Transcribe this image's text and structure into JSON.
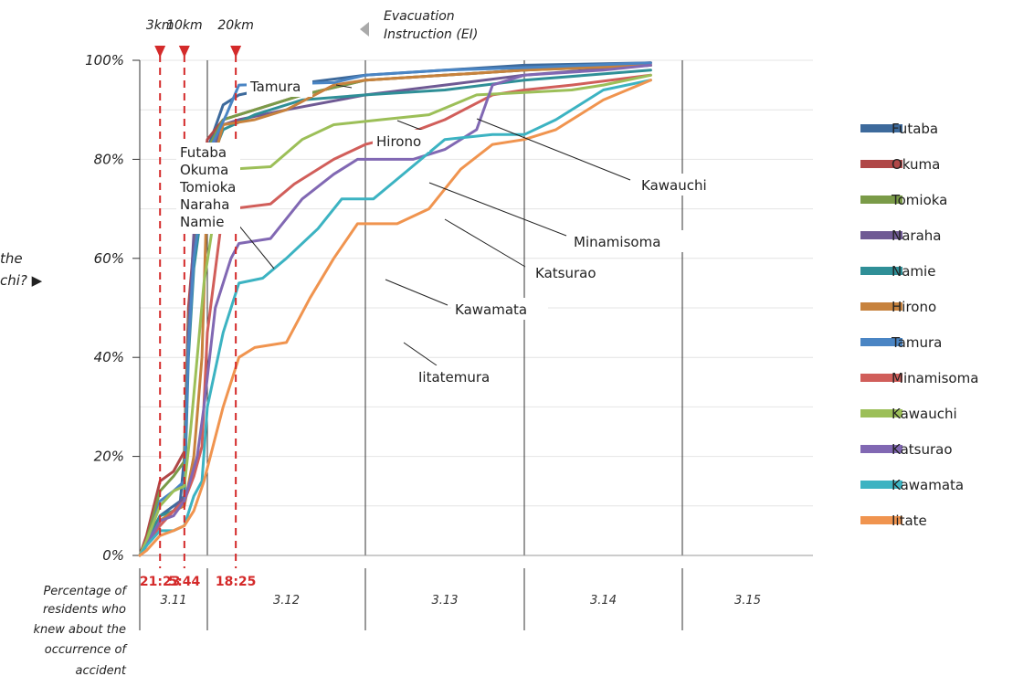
{
  "chart_data": {
    "type": "line",
    "y_ticks": [
      "0%",
      "20%",
      "40%",
      "60%",
      "80%",
      "100%"
    ],
    "ylim": [
      0,
      100
    ],
    "x_day_labels": [
      "3.11",
      "3.12",
      "3.13",
      "3.14",
      "3.15"
    ],
    "ylabel_lines": [
      "Percentage of",
      "residents who",
      "knew about the",
      "occurrence of",
      "accident"
    ],
    "side_text": [
      "the",
      "chi? ▶"
    ],
    "evacuation": {
      "label_lines": [
        "Evacuation",
        "Instruction (EI)"
      ],
      "markers": [
        {
          "distance": "3km",
          "time": "21:23",
          "x": 0.3
        },
        {
          "distance": "10km",
          "time": "5:44",
          "x": 0.66
        },
        {
          "distance": "20km",
          "time": "18:25",
          "x": 1.18
        }
      ]
    },
    "callouts": [
      "Tamura",
      "Hirono",
      "Kawauchi",
      "Minamisoma",
      "Katsurao",
      "Kawamata",
      "Iitatemura"
    ],
    "group_callout": [
      "Futaba",
      "Okuma",
      "Tomioka",
      "Naraha",
      "Namie"
    ],
    "series": [
      {
        "name": "Futaba",
        "color": "#3d6a9c",
        "points": [
          [
            0,
            0
          ],
          [
            0.1,
            3
          ],
          [
            0.3,
            8
          ],
          [
            0.5,
            10
          ],
          [
            0.6,
            11
          ],
          [
            0.66,
            20
          ],
          [
            0.72,
            48
          ],
          [
            0.8,
            62
          ],
          [
            0.9,
            71
          ],
          [
            1.0,
            82
          ],
          [
            1.1,
            91
          ],
          [
            1.2,
            93
          ],
          [
            1.5,
            95
          ],
          [
            2.0,
            97
          ],
          [
            2.5,
            98
          ],
          [
            3.0,
            99
          ],
          [
            3.8,
            99.5
          ]
        ]
      },
      {
        "name": "Okuma",
        "color": "#b04747",
        "points": [
          [
            0,
            0
          ],
          [
            0.1,
            4
          ],
          [
            0.3,
            15
          ],
          [
            0.5,
            17
          ],
          [
            0.66,
            21
          ],
          [
            0.72,
            50
          ],
          [
            0.8,
            63
          ],
          [
            0.9,
            73
          ],
          [
            1.0,
            84
          ],
          [
            1.1,
            88
          ],
          [
            1.3,
            90
          ],
          [
            1.6,
            93
          ],
          [
            2.0,
            96
          ],
          [
            2.5,
            97
          ],
          [
            3.0,
            98
          ],
          [
            3.8,
            99.5
          ]
        ]
      },
      {
        "name": "Tomioka",
        "color": "#7a9b48",
        "points": [
          [
            0,
            0
          ],
          [
            0.1,
            3
          ],
          [
            0.3,
            13
          ],
          [
            0.5,
            16
          ],
          [
            0.66,
            19
          ],
          [
            0.72,
            47
          ],
          [
            0.8,
            61
          ],
          [
            0.9,
            70
          ],
          [
            1.0,
            82
          ],
          [
            1.1,
            88
          ],
          [
            1.3,
            90
          ],
          [
            1.6,
            93
          ],
          [
            2.0,
            96
          ],
          [
            2.5,
            97
          ],
          [
            3.0,
            98
          ],
          [
            3.8,
            99
          ]
        ]
      },
      {
        "name": "Naraha",
        "color": "#6f5a94",
        "points": [
          [
            0,
            0
          ],
          [
            0.1,
            2
          ],
          [
            0.3,
            7
          ],
          [
            0.5,
            9
          ],
          [
            0.66,
            12
          ],
          [
            0.72,
            45
          ],
          [
            0.8,
            65
          ],
          [
            0.9,
            69
          ],
          [
            1.0,
            79
          ],
          [
            1.1,
            87
          ],
          [
            1.2,
            88
          ],
          [
            1.5,
            90
          ],
          [
            2.0,
            93
          ],
          [
            2.5,
            95
          ],
          [
            3.0,
            97
          ],
          [
            3.8,
            99
          ]
        ]
      },
      {
        "name": "Namie",
        "color": "#2f8f97",
        "points": [
          [
            0,
            0
          ],
          [
            0.1,
            2
          ],
          [
            0.3,
            8
          ],
          [
            0.5,
            9
          ],
          [
            0.66,
            11
          ],
          [
            0.72,
            40
          ],
          [
            0.8,
            58
          ],
          [
            0.9,
            68
          ],
          [
            1.0,
            78
          ],
          [
            1.1,
            86
          ],
          [
            1.3,
            89
          ],
          [
            1.6,
            92
          ],
          [
            2.0,
            93
          ],
          [
            2.5,
            94
          ],
          [
            3.0,
            96
          ],
          [
            3.8,
            98
          ]
        ]
      },
      {
        "name": "Hirono",
        "color": "#c7823d",
        "points": [
          [
            0,
            0
          ],
          [
            0.1,
            2
          ],
          [
            0.3,
            7
          ],
          [
            0.5,
            9
          ],
          [
            0.66,
            10
          ],
          [
            0.8,
            20
          ],
          [
            0.92,
            40
          ],
          [
            1.0,
            75
          ],
          [
            1.1,
            87
          ],
          [
            1.3,
            88
          ],
          [
            1.5,
            90
          ],
          [
            1.8,
            95
          ],
          [
            2.0,
            96
          ],
          [
            2.5,
            97
          ],
          [
            3.0,
            98
          ],
          [
            3.8,
            99
          ]
        ]
      },
      {
        "name": "Tamura",
        "color": "#4a85c4",
        "points": [
          [
            0,
            0
          ],
          [
            0.1,
            2
          ],
          [
            0.3,
            11
          ],
          [
            0.5,
            13
          ],
          [
            0.66,
            15
          ],
          [
            0.72,
            42
          ],
          [
            0.8,
            60
          ],
          [
            0.9,
            70
          ],
          [
            1.0,
            81
          ],
          [
            1.12,
            89
          ],
          [
            1.2,
            95
          ],
          [
            1.8,
            95.5
          ],
          [
            2.0,
            97
          ],
          [
            2.5,
            98
          ],
          [
            3.0,
            98.5
          ],
          [
            3.8,
            99.5
          ]
        ]
      },
      {
        "name": "Minamisoma",
        "color": "#d15e5a",
        "points": [
          [
            0,
            0
          ],
          [
            0.1,
            2
          ],
          [
            0.3,
            6
          ],
          [
            0.5,
            9
          ],
          [
            0.66,
            11
          ],
          [
            0.8,
            16
          ],
          [
            0.92,
            22
          ],
          [
            1.0,
            45
          ],
          [
            1.08,
            65
          ],
          [
            1.15,
            70
          ],
          [
            1.4,
            71
          ],
          [
            1.55,
            75
          ],
          [
            1.8,
            80
          ],
          [
            2.0,
            83
          ],
          [
            2.25,
            85
          ],
          [
            2.5,
            88
          ],
          [
            2.8,
            93
          ],
          [
            3.0,
            94
          ],
          [
            3.3,
            95
          ],
          [
            3.8,
            97
          ]
        ]
      },
      {
        "name": "Kawauchi",
        "color": "#9cbf58",
        "points": [
          [
            0,
            0
          ],
          [
            0.1,
            3
          ],
          [
            0.3,
            10
          ],
          [
            0.5,
            13
          ],
          [
            0.66,
            14
          ],
          [
            0.75,
            25
          ],
          [
            0.85,
            40
          ],
          [
            0.95,
            55
          ],
          [
            1.05,
            70
          ],
          [
            1.15,
            78
          ],
          [
            1.4,
            78.5
          ],
          [
            1.6,
            84
          ],
          [
            1.8,
            87
          ],
          [
            2.1,
            88
          ],
          [
            2.4,
            89
          ],
          [
            2.7,
            93
          ],
          [
            3.0,
            93.5
          ],
          [
            3.3,
            94
          ],
          [
            3.5,
            95
          ],
          [
            3.8,
            97
          ]
        ]
      },
      {
        "name": "Katsurao",
        "color": "#8168b3",
        "points": [
          [
            0,
            0
          ],
          [
            0.1,
            2
          ],
          [
            0.3,
            7
          ],
          [
            0.5,
            8
          ],
          [
            0.66,
            11
          ],
          [
            0.85,
            20
          ],
          [
            0.95,
            30
          ],
          [
            1.05,
            50
          ],
          [
            1.15,
            60
          ],
          [
            1.2,
            63
          ],
          [
            1.4,
            64
          ],
          [
            1.6,
            72
          ],
          [
            1.8,
            77
          ],
          [
            1.95,
            80
          ],
          [
            2.3,
            80
          ],
          [
            2.5,
            82
          ],
          [
            2.7,
            86
          ],
          [
            2.8,
            95
          ],
          [
            3.0,
            97
          ],
          [
            3.5,
            98
          ],
          [
            3.8,
            99
          ]
        ]
      },
      {
        "name": "Kawamata",
        "color": "#3cb3c2",
        "points": [
          [
            0,
            0
          ],
          [
            0.1,
            2
          ],
          [
            0.3,
            5
          ],
          [
            0.5,
            5
          ],
          [
            0.66,
            6
          ],
          [
            0.8,
            12
          ],
          [
            0.92,
            15
          ],
          [
            1.0,
            30
          ],
          [
            1.1,
            45
          ],
          [
            1.2,
            55
          ],
          [
            1.35,
            56
          ],
          [
            1.5,
            60
          ],
          [
            1.7,
            66
          ],
          [
            1.85,
            72
          ],
          [
            2.05,
            72
          ],
          [
            2.2,
            76
          ],
          [
            2.35,
            80
          ],
          [
            2.5,
            84
          ],
          [
            2.8,
            85
          ],
          [
            3.0,
            85
          ],
          [
            3.2,
            88
          ],
          [
            3.5,
            94
          ],
          [
            3.8,
            96
          ]
        ]
      },
      {
        "name": "Iitate",
        "color": "#f0944f",
        "points": [
          [
            0,
            0
          ],
          [
            0.1,
            1
          ],
          [
            0.3,
            4
          ],
          [
            0.5,
            5
          ],
          [
            0.66,
            6
          ],
          [
            0.8,
            9
          ],
          [
            0.95,
            15
          ],
          [
            1.1,
            30
          ],
          [
            1.2,
            40
          ],
          [
            1.3,
            42
          ],
          [
            1.5,
            43
          ],
          [
            1.65,
            52
          ],
          [
            1.8,
            60
          ],
          [
            1.95,
            67
          ],
          [
            2.2,
            67
          ],
          [
            2.4,
            70
          ],
          [
            2.6,
            78
          ],
          [
            2.8,
            83
          ],
          [
            3.0,
            84
          ],
          [
            3.2,
            86
          ],
          [
            3.5,
            92
          ],
          [
            3.8,
            96
          ]
        ]
      }
    ]
  }
}
